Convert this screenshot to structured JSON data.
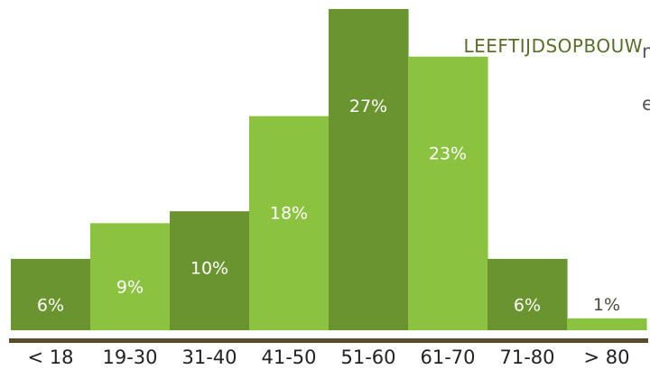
{
  "chart_data": {
    "type": "bar",
    "title": "LEEFTIJDSOPBOUW",
    "categories": [
      "< 18",
      "19-30",
      "31-40",
      "41-50",
      "51-60",
      "61-70",
      "71-80",
      "> 80"
    ],
    "values": [
      6,
      9,
      10,
      18,
      27,
      23,
      6,
      1
    ],
    "value_labels": [
      "6%",
      "9%",
      "10%",
      "18%",
      "27%",
      "23%",
      "6%",
      "1%"
    ],
    "ylim": [
      0,
      27
    ],
    "grid": false,
    "legend": "none",
    "title_placement": "top-right",
    "colors": {
      "dark_green": "#6a9430",
      "light_green": "#8bc240",
      "baseline": "#5a4a2e"
    },
    "bar_colors": [
      "dark_green",
      "light_green",
      "dark_green",
      "light_green",
      "dark_green",
      "light_green",
      "dark_green",
      "light_green"
    ]
  },
  "cut_text": [
    "n",
    "e"
  ]
}
